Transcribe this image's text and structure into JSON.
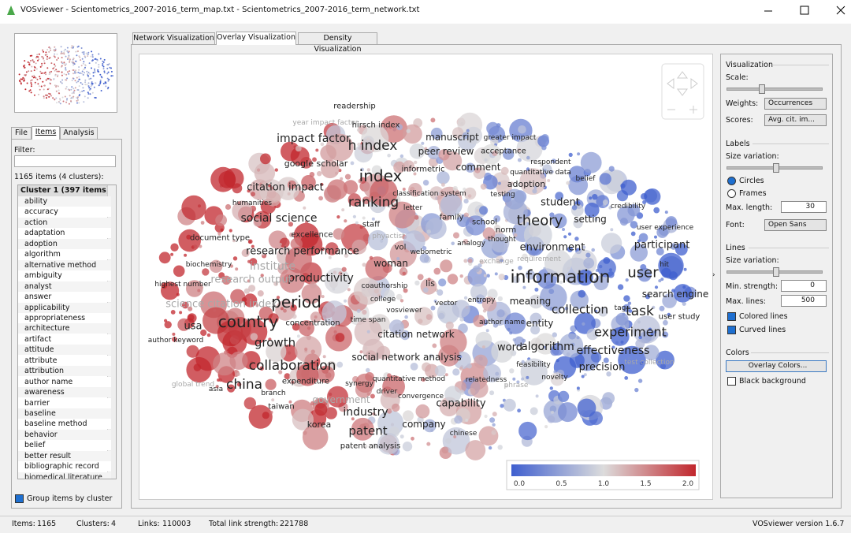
{
  "window": {
    "title": "VOSviewer - Scientometrics_2007-2016_term_map.txt - Scientometrics_2007-2016_term_network.txt"
  },
  "left_tabs": [
    "File",
    "Items",
    "Analysis"
  ],
  "items_panel": {
    "filter_label": "Filter:",
    "count": "1165 items (4 clusters):",
    "list": {
      "cluster": "Cluster 1 (397 items)",
      "items": [
        "ability",
        "accuracy",
        "action",
        "adaptation",
        "adoption",
        "algorithm",
        "alternative method",
        "ambiguity",
        "analyst",
        "answer",
        "applicability",
        "appropriateness",
        "architecture",
        "artifact",
        "attitude",
        "attribute",
        "attribution",
        "author name",
        "awareness",
        "barrier",
        "baseline",
        "baseline method",
        "behavior",
        "belief",
        "better result",
        "bibliographic record",
        "biomedical literature"
      ]
    },
    "group_checkbox": "Group items by cluster"
  },
  "main_tabs": [
    "Network Visualization",
    "Overlay Visualization",
    "Density Visualization"
  ],
  "map": {
    "terms": [
      "readership",
      "year impact factor",
      "hirsch index",
      "impact factor",
      "h index",
      "manuscript",
      "greater impact",
      "peer review",
      "acceptance",
      "respondent",
      "google scholar",
      "informetric",
      "comment",
      "index",
      "quantitative data",
      "belief",
      "citation impact",
      "adoption",
      "classification system",
      "testing",
      "humanities",
      "ranking",
      "student",
      "credibility",
      "social science",
      "family",
      "school",
      "theory",
      "setting",
      "staff",
      "norm",
      "user experience",
      "document type",
      "excellence",
      "phyactist",
      "analogy",
      "thought",
      "environment",
      "participant",
      "research performance",
      "vol",
      "webometric",
      "exchange",
      "requirement",
      "institute",
      "biochemistry",
      "woman",
      "hit",
      "user",
      "information",
      "productivity",
      "research output",
      "highest number",
      "coauthorship",
      "lis",
      "search engine",
      "period",
      "college",
      "vector",
      "entropy",
      "meaning",
      "science citation index",
      "vosviewer",
      "collection",
      "task",
      "tag",
      "user study",
      "usa",
      "country",
      "concentration",
      "time span",
      "author name",
      "entity",
      "experiment",
      "citation network",
      "author keyword",
      "growth",
      "word",
      "algorithm",
      "effectiveness",
      "social network analysis",
      "test collection",
      "feasibility",
      "collaboration",
      "precision",
      "novelty",
      "relatedness",
      "expenditure",
      "quantitative method",
      "phrase",
      "china",
      "synergy",
      "asia",
      "global trend",
      "branch",
      "driver",
      "convergence",
      "government",
      "capability",
      "taiwan",
      "industry",
      "korea",
      "company",
      "patent",
      "chinese",
      "patent analysis",
      "letter"
    ],
    "legend_ticks": [
      "0.0",
      "0.5",
      "1.0",
      "1.5",
      "2.0"
    ]
  },
  "right_panel": {
    "visualization": "Visualization",
    "scale": "Scale:",
    "weights": "Weights:",
    "weights_value": "Occurrences",
    "scores": "Scores:",
    "scores_value": "Avg. cit. im...",
    "labels": "Labels",
    "size_variation": "Size variation:",
    "circles": "Circles",
    "frames": "Frames",
    "max_length": "Max. length:",
    "max_length_value": "30",
    "font": "Font:",
    "font_value": "Open Sans",
    "lines": "Lines",
    "lines_size_variation": "Size variation:",
    "min_strength": "Min. strength:",
    "min_strength_value": "0",
    "max_lines": "Max. lines:",
    "max_lines_value": "500",
    "colored_lines": "Colored lines",
    "curved_lines": "Curved lines",
    "colors": "Colors",
    "overlay_colors": "Overlay Colors...",
    "black_background": "Black background"
  },
  "status_bar": {
    "items_label": "Items:",
    "items": "1165",
    "clusters_label": "Clusters:",
    "clusters": "4",
    "links_label": "Links:",
    "links": "110003",
    "strength_label": "Total link strength:",
    "strength": "221788",
    "version": "VOSviewer version 1.6.7"
  }
}
